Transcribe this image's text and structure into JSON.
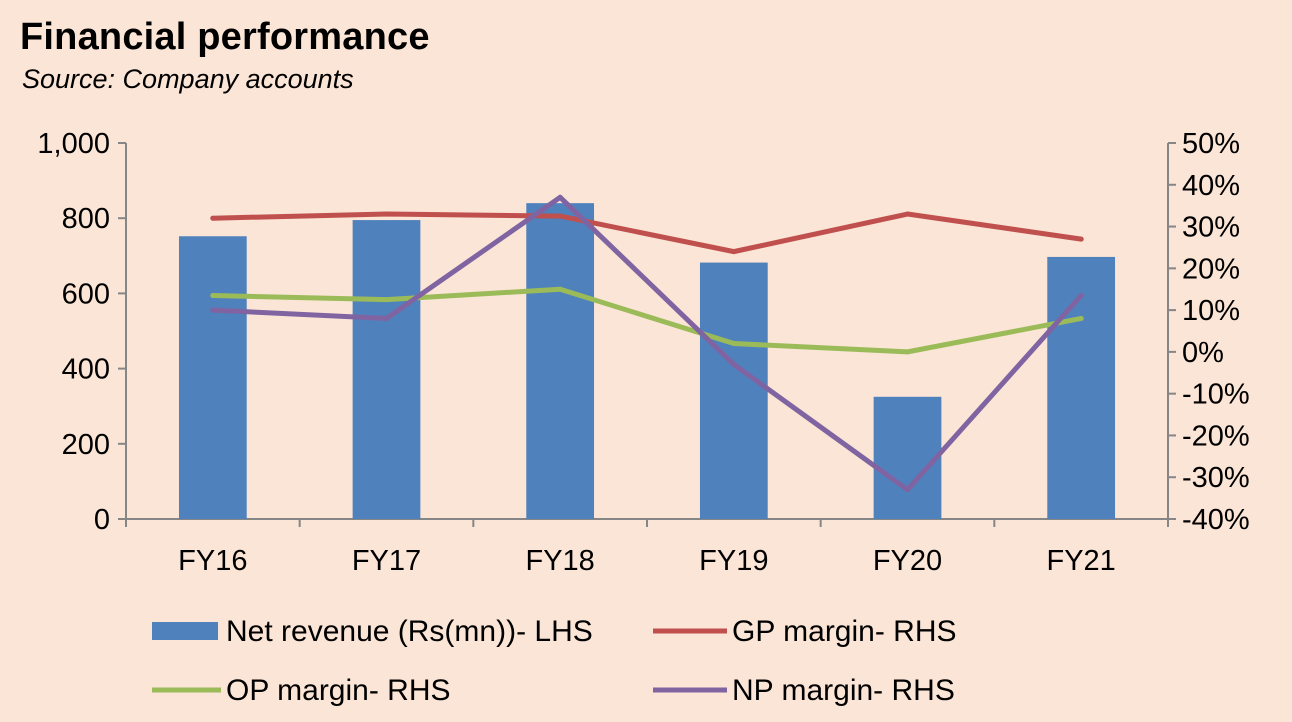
{
  "title": "Financial performance",
  "subtitle": "Source: Company accounts",
  "chart_data": {
    "type": "bar+line",
    "categories": [
      "FY16",
      "FY17",
      "FY18",
      "FY19",
      "FY20",
      "FY21"
    ],
    "left_axis": {
      "ylim": [
        0,
        1000
      ],
      "ticks": [
        "0",
        "200",
        "400",
        "600",
        "800",
        "1,000"
      ]
    },
    "right_axis": {
      "ylim": [
        -40,
        50
      ],
      "ticks": [
        "-40%",
        "-30%",
        "-20%",
        "-10%",
        "0%",
        "10%",
        "20%",
        "30%",
        "40%",
        "50%"
      ]
    },
    "bars": {
      "name": "Net revenue (Rs(mn))- LHS",
      "axis": "left",
      "color": "#4f81bd",
      "values": [
        752,
        795,
        840,
        682,
        325,
        697
      ]
    },
    "lines": [
      {
        "name": "GP margin- RHS",
        "axis": "right",
        "color": "#c0504d",
        "values": [
          32,
          33,
          32.5,
          24,
          33,
          27
        ]
      },
      {
        "name": "OP margin- RHS",
        "axis": "right",
        "color": "#9bbb59",
        "values": [
          13.5,
          12.5,
          15,
          2,
          0,
          8
        ]
      },
      {
        "name": "NP margin- RHS",
        "axis": "right",
        "color": "#8064a2",
        "values": [
          10,
          8,
          37,
          -3,
          -33,
          13.5
        ]
      }
    ],
    "grid": false,
    "legend_position": "bottom"
  }
}
